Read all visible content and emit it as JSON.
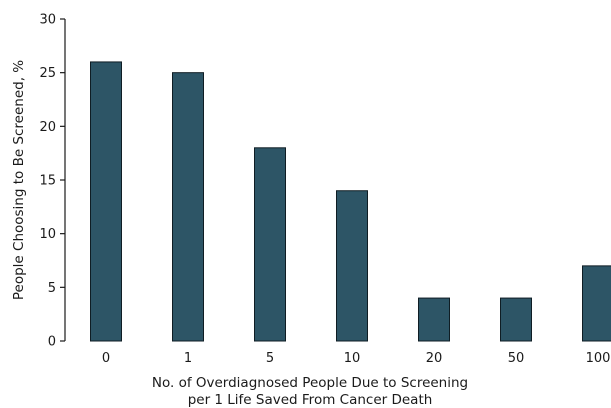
{
  "chart_data": {
    "type": "bar",
    "categories": [
      "0",
      "1",
      "5",
      "10",
      "20",
      "50",
      "100"
    ],
    "values": [
      26,
      25,
      18,
      14,
      4,
      4,
      7
    ],
    "xlabel": [
      "No. of Overdiagnosed People Due to Screening",
      "per 1 Life Saved From Cancer Death"
    ],
    "ylabel": "People Choosing to Be Screened, %",
    "ylim": [
      0,
      30
    ],
    "yticks": [
      "0",
      "5",
      "10",
      "15",
      "20",
      "25",
      "30"
    ],
    "grid": false,
    "legend": "none",
    "bar_color": "#2d5566",
    "bar_edge_color": "#0f1d24"
  }
}
